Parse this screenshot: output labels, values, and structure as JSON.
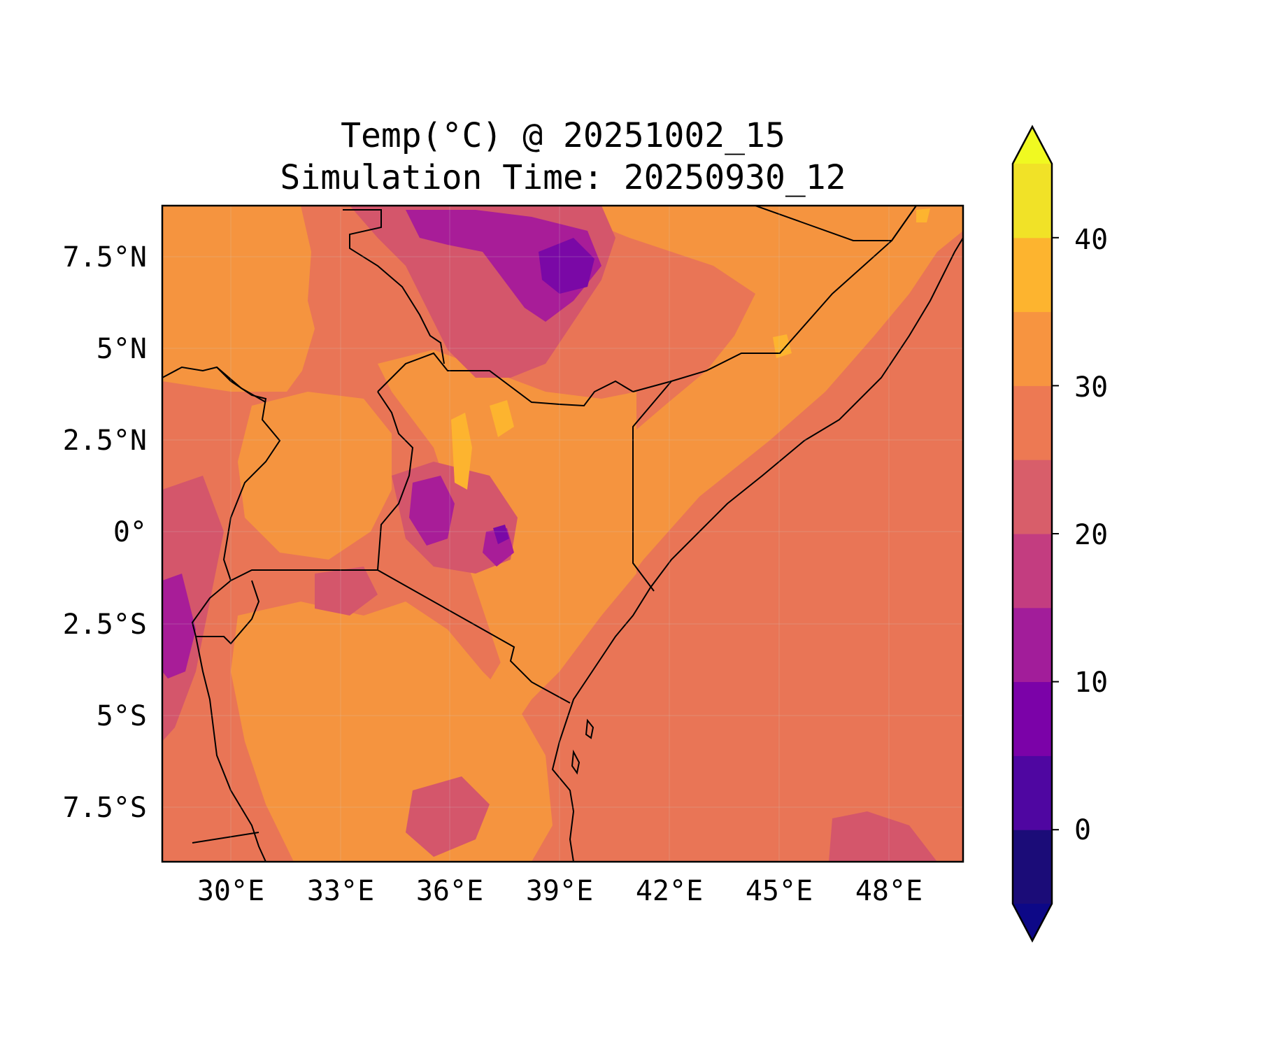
{
  "title": "Temp(°C) @ 20251002_15",
  "subtitle": "Simulation Time: 20250930_12",
  "map": {
    "lat_ticks": [
      "7.5°N",
      "5°N",
      "2.5°N",
      "0°",
      "2.5°S",
      "5°S",
      "7.5°S"
    ],
    "lon_ticks": [
      "30°E",
      "33°E",
      "36°E",
      "39°E",
      "42°E",
      "45°E",
      "48°E"
    ]
  },
  "colorbar": {
    "ticks": [
      "40",
      "30",
      "20",
      "10",
      "0"
    ],
    "levels": [
      -5,
      0,
      5,
      10,
      15,
      20,
      25,
      30,
      35,
      40,
      45
    ],
    "colors": [
      "#1b0c78",
      "#4f06a1",
      "#7b02a8",
      "#a21d9a",
      "#c33d80",
      "#d85e6a",
      "#ed7953",
      "#f79440",
      "#fdb42f",
      "#f1e227"
    ],
    "under_color": "#0d0887",
    "over_color": "#f0f921",
    "extend": "both"
  },
  "colors": {
    "ocean": "#e97556",
    "land_warm": "#f5943f",
    "land_mid": "#e97556",
    "highland": "#d4566b",
    "mountain": "#a81d98",
    "peak": "#7a08a6",
    "hot": "#fdb42f",
    "border": "#000000"
  }
}
